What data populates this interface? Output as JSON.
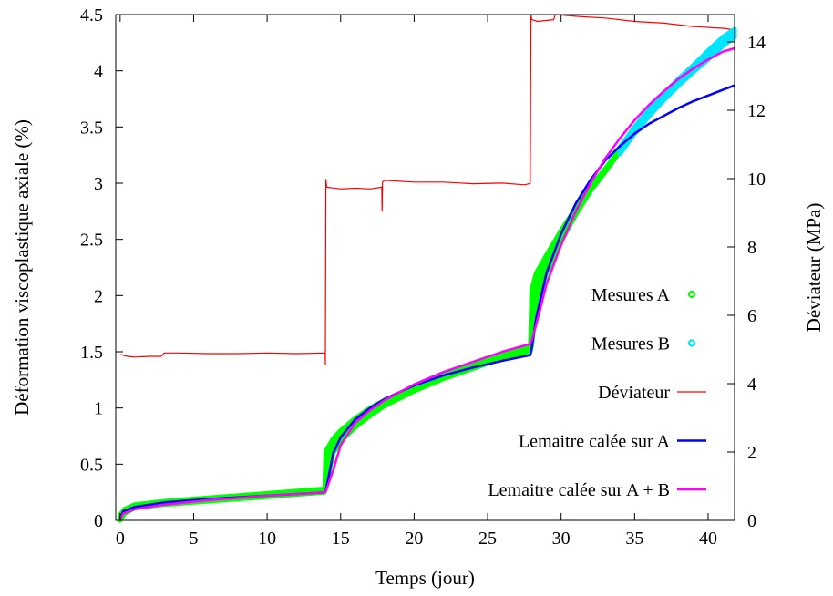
{
  "chart_data": {
    "type": "line",
    "title": "",
    "xlabel": "Temps (jour)",
    "ylabel": "Déformation viscoplastique axiale (%)",
    "y2label": "Déviateur (MPa)",
    "xlim": [
      -0.3,
      41.8
    ],
    "ylim": [
      0,
      4.5
    ],
    "y2lim": [
      0,
      14.8
    ],
    "xticks": [
      0,
      5,
      10,
      15,
      20,
      25,
      30,
      35,
      40
    ],
    "xtick_labels": [
      "0",
      "5",
      "10",
      "15",
      "20",
      "25",
      "30",
      "35",
      "40"
    ],
    "yticks": [
      0,
      0.5,
      1,
      1.5,
      2,
      2.5,
      3,
      3.5,
      4,
      4.5
    ],
    "ytick_labels": [
      "0",
      "0.5",
      "1",
      "1.5",
      "2",
      "2.5",
      "3",
      "3.5",
      "4",
      "4.5"
    ],
    "y2ticks": [
      0,
      2,
      4,
      6,
      8,
      10,
      12,
      14
    ],
    "y2tick_labels": [
      "0",
      "2",
      "4",
      "6",
      "8",
      "10",
      "12",
      "14"
    ],
    "grid": false,
    "legend_position": "right-middle",
    "series": [
      {
        "name": "Mesures A",
        "axis": "left",
        "style": "points-band",
        "color": "#00ff00",
        "x": [
          0,
          0.3,
          1,
          3,
          6,
          10,
          13.9,
          14.0,
          14.5,
          15,
          16,
          17,
          18,
          20,
          22,
          24,
          26,
          27.9,
          28.0,
          28.3,
          29,
          30,
          31,
          32,
          33,
          34
        ],
        "y_low": [
          0,
          0.06,
          0.11,
          0.14,
          0.17,
          0.21,
          0.25,
          0.3,
          0.6,
          0.7,
          0.83,
          0.93,
          1.02,
          1.15,
          1.26,
          1.35,
          1.44,
          1.5,
          1.55,
          1.9,
          2.2,
          2.48,
          2.72,
          2.93,
          3.1,
          3.28
        ],
        "y_high": [
          0.05,
          0.1,
          0.14,
          0.17,
          0.2,
          0.24,
          0.28,
          0.62,
          0.73,
          0.8,
          0.91,
          1.0,
          1.07,
          1.19,
          1.3,
          1.39,
          1.47,
          1.55,
          2.05,
          2.2,
          2.36,
          2.58,
          2.78,
          2.97,
          3.13,
          3.3
        ]
      },
      {
        "name": "Mesures B",
        "axis": "left",
        "style": "points-band",
        "color": "#00e5ff",
        "x": [
          34,
          35,
          36,
          37,
          38,
          39,
          40,
          41,
          41.8
        ],
        "y_low": [
          3.26,
          3.44,
          3.6,
          3.74,
          3.87,
          3.99,
          4.1,
          4.22,
          4.3
        ],
        "y_high": [
          3.32,
          3.5,
          3.66,
          3.8,
          3.93,
          4.05,
          4.18,
          4.3,
          4.37
        ]
      },
      {
        "name": "Déviateur",
        "axis": "right",
        "style": "line",
        "color": "#ff0000",
        "x": [
          0,
          0.5,
          1,
          2,
          2.8,
          3,
          4,
          6,
          8,
          10,
          12,
          13.95,
          13.96,
          14.0,
          14.05,
          15,
          16,
          17,
          17.8,
          17.82,
          17.85,
          17.9,
          18,
          20,
          22,
          24,
          26,
          27.5,
          27.9,
          27.95,
          28.0,
          28.4,
          29.5,
          29.6,
          31,
          33,
          35,
          37,
          39,
          41,
          41.8
        ],
        "y": [
          4.85,
          4.8,
          4.78,
          4.8,
          4.8,
          4.9,
          4.9,
          4.88,
          4.88,
          4.9,
          4.88,
          4.9,
          4.55,
          9.98,
          9.75,
          9.7,
          9.72,
          9.7,
          9.75,
          9.05,
          9.9,
          9.92,
          9.95,
          9.9,
          9.9,
          9.85,
          9.87,
          9.82,
          9.86,
          14.8,
          14.65,
          14.6,
          14.65,
          14.8,
          14.75,
          14.7,
          14.6,
          14.55,
          14.45,
          14.4,
          14.35
        ]
      },
      {
        "name": "Lemaitre calée sur A",
        "axis": "left",
        "style": "line",
        "color": "#0000ff",
        "x": [
          0,
          0.2,
          1,
          3,
          6,
          10,
          13.9,
          14.0,
          14.5,
          15,
          16,
          17,
          18,
          20,
          22,
          24,
          26,
          27.9,
          28.0,
          28.3,
          29,
          30,
          31,
          32,
          33,
          34,
          35,
          36,
          37,
          38,
          39,
          40,
          41,
          41.8
        ],
        "y": [
          0.02,
          0.08,
          0.12,
          0.16,
          0.19,
          0.22,
          0.25,
          0.27,
          0.6,
          0.74,
          0.9,
          1.0,
          1.08,
          1.2,
          1.29,
          1.36,
          1.42,
          1.47,
          1.53,
          1.8,
          2.2,
          2.55,
          2.82,
          3.03,
          3.2,
          3.33,
          3.44,
          3.53,
          3.6,
          3.67,
          3.73,
          3.78,
          3.83,
          3.87
        ]
      },
      {
        "name": "Lemaitre calée sur A + B",
        "axis": "left",
        "style": "line",
        "color": "#ff00ff",
        "x": [
          0,
          0.2,
          1,
          3,
          6,
          10,
          13.9,
          14.0,
          14.5,
          15,
          16,
          17,
          18,
          20,
          22,
          24,
          26,
          27.9,
          28.0,
          28.3,
          29,
          30,
          31,
          32,
          33,
          34,
          35,
          36,
          37,
          38,
          39,
          40,
          41,
          41.8
        ],
        "y": [
          0.01,
          0.06,
          0.1,
          0.14,
          0.18,
          0.22,
          0.25,
          0.26,
          0.45,
          0.67,
          0.87,
          0.98,
          1.07,
          1.21,
          1.32,
          1.41,
          1.5,
          1.57,
          1.6,
          1.74,
          2.1,
          2.45,
          2.75,
          3.0,
          3.22,
          3.4,
          3.56,
          3.7,
          3.82,
          3.93,
          4.02,
          4.1,
          4.17,
          4.2
        ]
      }
    ]
  }
}
